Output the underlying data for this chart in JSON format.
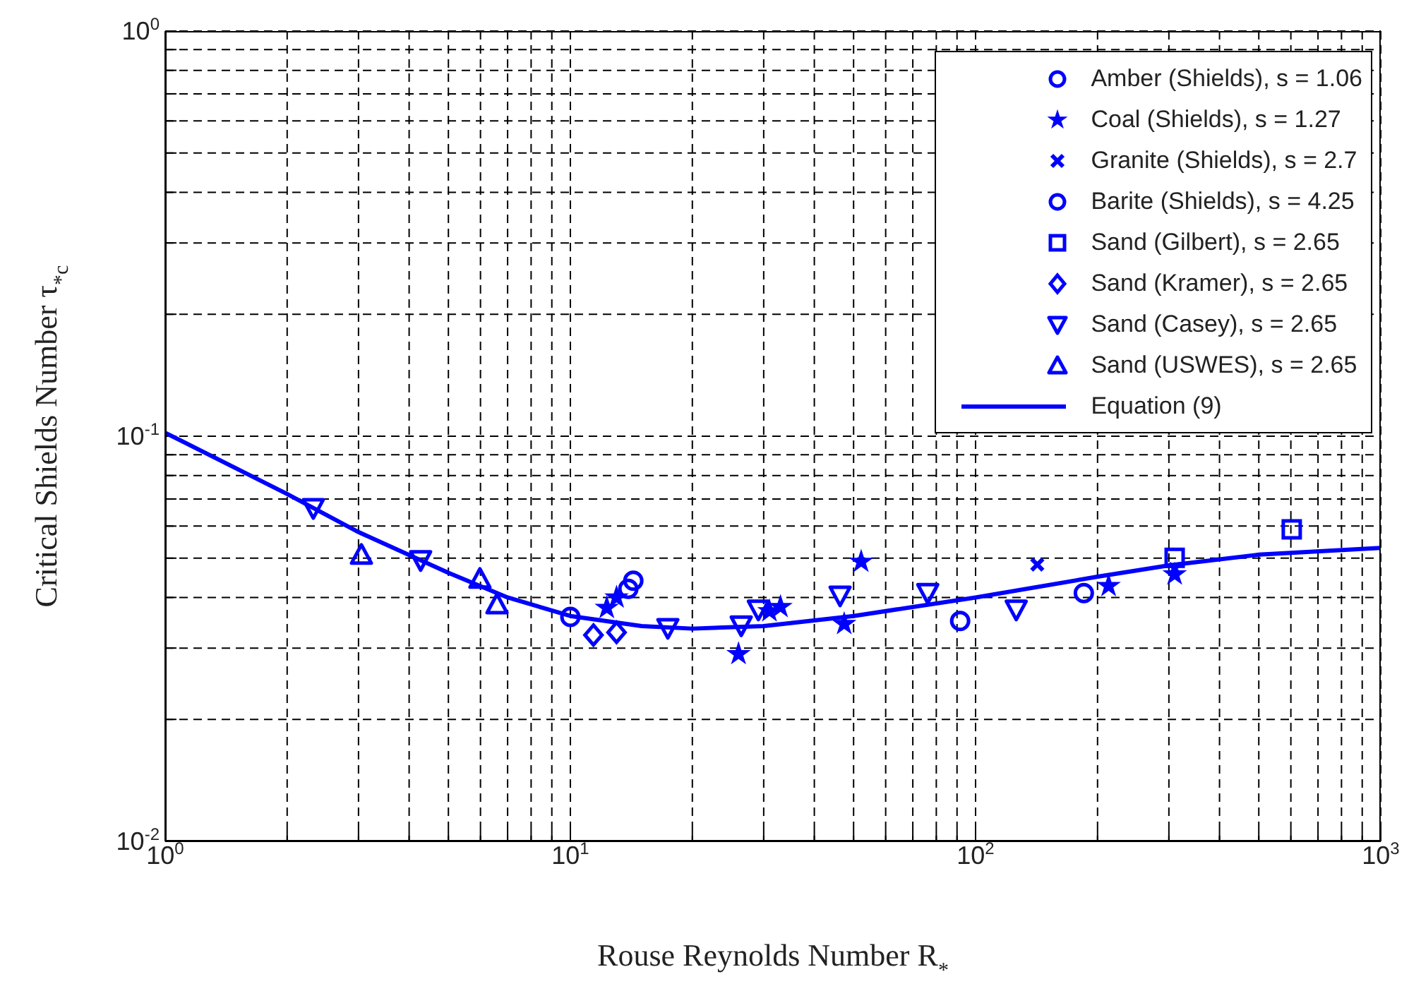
{
  "chart_data": {
    "type": "scatter",
    "xlabel": "Rouse Reynolds Number R$_{*}$",
    "ylabel": "Critical Shields Number τ$_{*c}$",
    "log": "xy",
    "grid": true,
    "legend": "top right",
    "xlim": [
      1,
      1000
    ],
    "ylim": [
      0.01,
      1
    ],
    "xticks": [
      {
        "value": 1,
        "label": "10$^{0}$"
      },
      {
        "value": 2,
        "label": null
      },
      {
        "value": 3,
        "label": null
      },
      {
        "value": 4,
        "label": null
      },
      {
        "value": 5,
        "label": null
      },
      {
        "value": 6,
        "label": null
      },
      {
        "value": 7,
        "label": null
      },
      {
        "value": 8,
        "label": null
      },
      {
        "value": 9,
        "label": null
      },
      {
        "value": 10,
        "label": "10$^{1}$"
      },
      {
        "value": 20,
        "label": null
      },
      {
        "value": 30,
        "label": null
      },
      {
        "value": 40,
        "label": null
      },
      {
        "value": 50,
        "label": null
      },
      {
        "value": 60,
        "label": null
      },
      {
        "value": 70,
        "label": null
      },
      {
        "value": 80,
        "label": null
      },
      {
        "value": 90,
        "label": null
      },
      {
        "value": 100,
        "label": "10$^{2}$"
      },
      {
        "value": 200,
        "label": null
      },
      {
        "value": 300,
        "label": null
      },
      {
        "value": 400,
        "label": null
      },
      {
        "value": 500,
        "label": null
      },
      {
        "value": 600,
        "label": null
      },
      {
        "value": 700,
        "label": null
      },
      {
        "value": 800,
        "label": null
      },
      {
        "value": 900,
        "label": null
      },
      {
        "value": 1000,
        "label": "10$^{3}$"
      }
    ],
    "yticks": [
      {
        "value": 0.01,
        "label": "10$^{-2}$"
      },
      {
        "value": 0.02,
        "label": null
      },
      {
        "value": 0.03,
        "label": null
      },
      {
        "value": 0.04,
        "label": null
      },
      {
        "value": 0.05,
        "label": null
      },
      {
        "value": 0.06,
        "label": null
      },
      {
        "value": 0.07,
        "label": null
      },
      {
        "value": 0.08,
        "label": null
      },
      {
        "value": 0.09,
        "label": null
      },
      {
        "value": 0.1,
        "label": "10$^{-1}$"
      },
      {
        "value": 0.2,
        "label": null
      },
      {
        "value": 0.3,
        "label": null
      },
      {
        "value": 0.4,
        "label": null
      },
      {
        "value": 0.5,
        "label": null
      },
      {
        "value": 0.6,
        "label": null
      },
      {
        "value": 0.7,
        "label": null
      },
      {
        "value": 0.8,
        "label": null
      },
      {
        "value": 0.9,
        "label": null
      },
      {
        "value": 1,
        "label": "10$^{0}$"
      }
    ],
    "series": [
      {
        "name": "Amber (Shields), s = 1.06",
        "color": "#0000ff",
        "marker": "circle",
        "x": [
          13.9,
          14.3
        ],
        "values": [
          0.042,
          0.044
        ]
      },
      {
        "name": "Coal (Shields), s = 1.27",
        "color": "#0000ff",
        "marker": "star",
        "x": [
          12.3,
          13.0,
          26.0,
          33.0,
          31.0,
          52.2,
          47.4,
          213,
          310
        ],
        "values": [
          0.0377,
          0.04,
          0.029,
          0.0379,
          0.037,
          0.049,
          0.0344,
          0.0427,
          0.0456
        ]
      },
      {
        "name": "Granite (Shields), s = 2.7",
        "color": "#0000ff",
        "marker": "cross",
        "x": [
          142,
          310
        ],
        "values": [
          0.0482,
          0.047
        ]
      },
      {
        "name": "Barite (Shields), s = 4.25",
        "color": "#0000ff",
        "marker": "circle",
        "x": [
          10.0,
          91.6,
          185
        ],
        "values": [
          0.0358,
          0.035,
          0.041
        ]
      },
      {
        "name": "Sand (Gilbert), s = 2.65",
        "color": "#0000ff",
        "marker": "square",
        "x": [
          310,
          603
        ],
        "values": [
          0.0501,
          0.0589
        ]
      },
      {
        "name": "Sand (Kramer), s = 2.65",
        "color": "#0000ff",
        "marker": "diamond",
        "x": [
          11.4,
          13.0
        ],
        "values": [
          0.0323,
          0.0328
        ]
      },
      {
        "name": "Sand (Casey), s = 2.65",
        "color": "#0000ff",
        "marker": "triangle-down",
        "x": [
          2.32,
          4.27,
          17.4,
          26.4,
          29.1,
          46.3,
          76.2,
          126
        ],
        "values": [
          0.0664,
          0.0494,
          0.0336,
          0.0341,
          0.0373,
          0.0404,
          0.041,
          0.0373
        ]
      },
      {
        "name": "Sand (USWES), s = 2.65",
        "color": "#0000ff",
        "marker": "triangle",
        "x": [
          3.05,
          5.98,
          6.59
        ],
        "values": [
          0.051,
          0.0445,
          0.0385
        ]
      },
      {
        "name": "Equation (9)",
        "type": "line",
        "color": "#0000ff",
        "marker": "none",
        "line_style": "solid",
        "x": [
          1,
          2,
          3,
          5,
          7,
          10,
          15,
          20,
          30,
          50,
          100,
          200,
          300,
          500,
          1000
        ],
        "values": [
          0.102,
          0.072,
          0.058,
          0.046,
          0.04,
          0.036,
          0.034,
          0.0335,
          0.034,
          0.036,
          0.04,
          0.045,
          0.048,
          0.051,
          0.053
        ]
      }
    ]
  }
}
